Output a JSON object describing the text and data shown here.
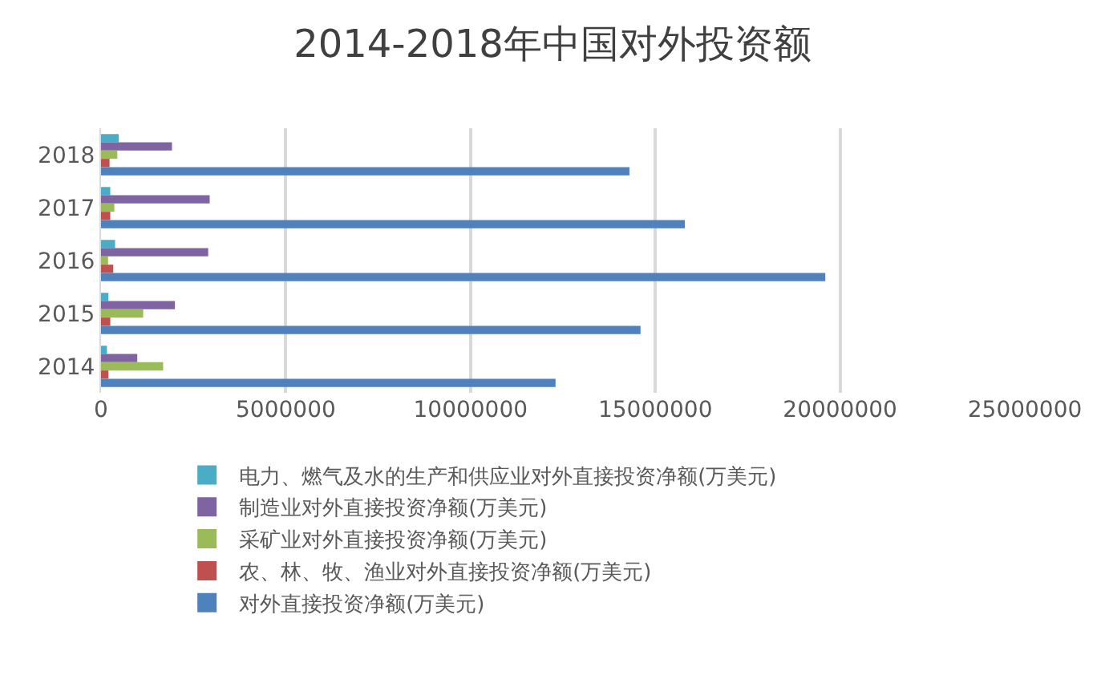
{
  "chart_data": {
    "type": "bar",
    "orientation": "horizontal",
    "title": "2014-2018年中国对外投资额",
    "categories": [
      "2018",
      "2017",
      "2016",
      "2015",
      "2014"
    ],
    "series": [
      {
        "name": "电力、燃气及水的生产和供应业对外直接投资净额(万美元)",
        "color": "#4bacc6",
        "values": [
          480000,
          250000,
          380000,
          200000,
          160000
        ]
      },
      {
        "name": "制造业对外直接投资净额(万美元)",
        "color": "#8064a2",
        "values": [
          1920000,
          2940000,
          2900000,
          2000000,
          980000
        ]
      },
      {
        "name": "采矿业对外直接投资净额(万美元)",
        "color": "#9bbb59",
        "values": [
          440000,
          360000,
          190000,
          1140000,
          1680000
        ]
      },
      {
        "name": "农、林、牧、渔业对外直接投资净额(万美元)",
        "color": "#c0504d",
        "values": [
          230000,
          250000,
          330000,
          250000,
          200000
        ]
      },
      {
        "name": "对外直接投资净额(万美元)",
        "color": "#4f81bd",
        "values": [
          14300000,
          15800000,
          19600000,
          14600000,
          12300000
        ]
      }
    ],
    "xlim": [
      0,
      25000000
    ],
    "xticks": [
      0,
      5000000,
      10000000,
      15000000,
      20000000,
      25000000
    ],
    "grid": "x",
    "legend": "bottom"
  }
}
